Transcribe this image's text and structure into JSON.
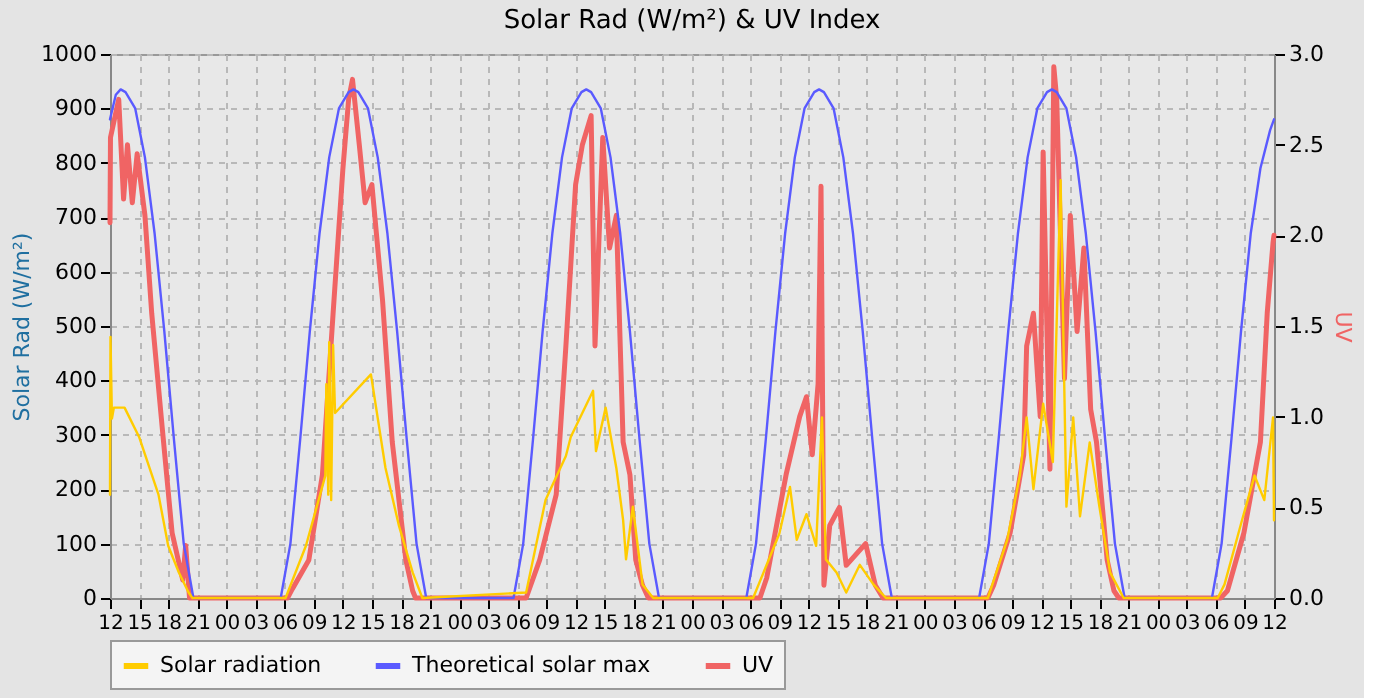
{
  "chart_data": {
    "type": "line",
    "title": "Solar Rad (W/m²) &  UV Index",
    "ylabel": "Solar Rad (W/m²)",
    "y2label": "UV",
    "xlim": [
      12,
      132
    ],
    "xticks": [
      {
        "value": 12,
        "label": "12"
      },
      {
        "value": 15,
        "label": "15"
      },
      {
        "value": 18,
        "label": "18"
      },
      {
        "value": 21,
        "label": "21"
      },
      {
        "value": 24,
        "label": "00"
      },
      {
        "value": 27,
        "label": "03"
      },
      {
        "value": 30,
        "label": "06"
      },
      {
        "value": 33,
        "label": "09"
      },
      {
        "value": 36,
        "label": "12"
      },
      {
        "value": 39,
        "label": "15"
      },
      {
        "value": 42,
        "label": "18"
      },
      {
        "value": 45,
        "label": "21"
      },
      {
        "value": 48,
        "label": "00"
      },
      {
        "value": 51,
        "label": "03"
      },
      {
        "value": 54,
        "label": "06"
      },
      {
        "value": 57,
        "label": "09"
      },
      {
        "value": 60,
        "label": "12"
      },
      {
        "value": 63,
        "label": "15"
      },
      {
        "value": 66,
        "label": "18"
      },
      {
        "value": 69,
        "label": "21"
      },
      {
        "value": 72,
        "label": "00"
      },
      {
        "value": 75,
        "label": "03"
      },
      {
        "value": 78,
        "label": "06"
      },
      {
        "value": 81,
        "label": "09"
      },
      {
        "value": 84,
        "label": "12"
      },
      {
        "value": 87,
        "label": "15"
      },
      {
        "value": 90,
        "label": "18"
      },
      {
        "value": 93,
        "label": "21"
      },
      {
        "value": 96,
        "label": "00"
      },
      {
        "value": 99,
        "label": "03"
      },
      {
        "value": 102,
        "label": "06"
      },
      {
        "value": 105,
        "label": "09"
      },
      {
        "value": 108,
        "label": "12"
      },
      {
        "value": 111,
        "label": "15"
      },
      {
        "value": 114,
        "label": "18"
      },
      {
        "value": 117,
        "label": "21"
      },
      {
        "value": 120,
        "label": "00"
      },
      {
        "value": 123,
        "label": "03"
      },
      {
        "value": 126,
        "label": "06"
      },
      {
        "value": 129,
        "label": "09"
      },
      {
        "value": 132,
        "label": "12"
      }
    ],
    "ylim": [
      0,
      1000
    ],
    "yticks": [
      0,
      100,
      200,
      300,
      400,
      500,
      600,
      700,
      800,
      900,
      1000
    ],
    "y2lim": [
      0,
      3
    ],
    "y2ticks": [
      {
        "value": 0,
        "label": "0.0"
      },
      {
        "value": 0.5,
        "label": "0.5"
      },
      {
        "value": 1,
        "label": "1.0"
      },
      {
        "value": 1.5,
        "label": "1.5"
      },
      {
        "value": 2,
        "label": "2.0"
      },
      {
        "value": 2.5,
        "label": "2.5"
      },
      {
        "value": 3,
        "label": "3.0"
      }
    ],
    "grid": true,
    "legend": "bottom",
    "series": [
      {
        "name": "Solar radiation",
        "color": "#ffcc00",
        "x": [
          12,
          12.05,
          12.2,
          12.4,
          13.5,
          15.0,
          17.0,
          18.0,
          19.1,
          20.1,
          20.5,
          30.1,
          32.2,
          34.2,
          34.3,
          34.5,
          34.6,
          34.8,
          35.0,
          35.2,
          38.9,
          40.4,
          41.8,
          43.2,
          44.2,
          54.9,
          56.9,
          59.0,
          59.5,
          61.8,
          62.1,
          63.1,
          64.2,
          64.9,
          65.2,
          65.9,
          66.9,
          68.0,
          78.3,
          81.0,
          82.1,
          82.8,
          83.8,
          84.8,
          85.4,
          85.8,
          86.9,
          87.9,
          89.3,
          90.7,
          92.0,
          102.5,
          104.5,
          105.8,
          106.5,
          107.2,
          108.2,
          109.2,
          110.0,
          110.6,
          111.3,
          112.0,
          113.0,
          114.0,
          115.1,
          116.5,
          126.2,
          126.9,
          128.7,
          130.0,
          131.0,
          131.9,
          132.0
        ],
        "values": [
          190,
          480,
          330,
          350,
          350,
          296,
          190,
          96,
          47,
          10,
          0,
          0,
          96,
          225,
          393,
          190,
          470,
          180,
          465,
          340,
          411,
          239,
          132,
          47,
          0,
          10,
          180,
          261,
          296,
          381,
          270,
          350,
          239,
          143,
          71,
          168,
          25,
          0,
          0,
          118,
          204,
          107,
          154,
          96,
          332,
          71,
          47,
          10,
          61,
          25,
          0,
          0,
          107,
          225,
          332,
          200,
          357,
          250,
          768,
          168,
          332,
          150,
          286,
          168,
          47,
          0,
          0,
          25,
          143,
          225,
          180,
          332,
          143
        ]
      },
      {
        "name": "Theoretical solar max",
        "color": "#5a5aff",
        "x": [
          12,
          12.6,
          13.1,
          13.6,
          14.6,
          15.6,
          16.6,
          17.6,
          18.6,
          19.6,
          20.6,
          29.6,
          30.6,
          31.6,
          32.6,
          33.6,
          34.6,
          35.6,
          36.6,
          37.1,
          37.6,
          38.6,
          39.6,
          40.6,
          41.6,
          42.6,
          43.6,
          44.6,
          53.6,
          54.6,
          55.6,
          56.6,
          57.6,
          58.6,
          59.6,
          60.6,
          61.1,
          61.6,
          62.6,
          63.6,
          64.6,
          65.6,
          66.6,
          67.6,
          68.6,
          77.6,
          78.6,
          79.6,
          80.6,
          81.6,
          82.6,
          83.6,
          84.6,
          85.1,
          85.6,
          86.6,
          87.6,
          88.6,
          89.6,
          90.6,
          91.6,
          92.6,
          101.6,
          102.6,
          103.6,
          104.6,
          105.6,
          106.6,
          107.6,
          108.6,
          109.1,
          109.6,
          110.6,
          111.6,
          112.6,
          113.6,
          114.6,
          115.6,
          116.6,
          125.6,
          126.6,
          127.6,
          128.6,
          129.6,
          130.6,
          131.6,
          132
        ],
        "values": [
          880,
          925,
          935,
          930,
          900,
          810,
          670,
          490,
          290,
          100,
          0,
          0,
          100,
          290,
          490,
          670,
          810,
          900,
          930,
          935,
          930,
          900,
          810,
          670,
          490,
          290,
          100,
          0,
          0,
          100,
          290,
          490,
          670,
          810,
          900,
          930,
          935,
          930,
          900,
          810,
          670,
          490,
          290,
          100,
          0,
          0,
          100,
          290,
          490,
          670,
          810,
          900,
          930,
          935,
          930,
          900,
          810,
          670,
          490,
          290,
          100,
          0,
          0,
          100,
          290,
          490,
          670,
          810,
          900,
          930,
          935,
          930,
          900,
          810,
          670,
          490,
          290,
          100,
          0,
          0,
          100,
          290,
          490,
          670,
          790,
          860,
          880
        ]
      },
      {
        "name": "UV",
        "color": "#f06464",
        "axis": "y2",
        "x": [
          12,
          12.05,
          12.9,
          13.4,
          13.8,
          14.3,
          14.8,
          15.6,
          16.3,
          17.4,
          18.4,
          19.5,
          19.8,
          20.2,
          30.3,
          30.8,
          32.5,
          33.9,
          35.0,
          36.0,
          36.6,
          37.0,
          37.7,
          38.3,
          39.0,
          40.1,
          41.1,
          42.5,
          43.2,
          43.5,
          54.9,
          56.3,
          58.0,
          59.0,
          60.0,
          60.7,
          61.6,
          62.0,
          62.8,
          63.5,
          64.2,
          64.9,
          65.6,
          66.2,
          66.9,
          67.5,
          79.0,
          79.7,
          81.7,
          83.1,
          83.8,
          84.4,
          85.0,
          85.3,
          85.6,
          86.2,
          87.2,
          87.9,
          89.9,
          90.9,
          91.7,
          102.5,
          103.1,
          104.8,
          106.2,
          106.5,
          107.2,
          107.9,
          108.2,
          108.9,
          109.3,
          109.6,
          110.4,
          111.0,
          111.7,
          112.4,
          113.1,
          113.7,
          114.8,
          115.5,
          116.0,
          126.5,
          127.2,
          128.9,
          130.6,
          131.3,
          131.9,
          132
        ],
        "values": [
          2.07,
          2.54,
          2.75,
          2.2,
          2.5,
          2.18,
          2.45,
          2.11,
          1.57,
          0.93,
          0.36,
          0.1,
          0.29,
          0,
          0,
          0.05,
          0.21,
          0.68,
          1.57,
          2.36,
          2.75,
          2.86,
          2.5,
          2.18,
          2.28,
          1.64,
          0.86,
          0.21,
          0.04,
          0,
          0,
          0.21,
          0.57,
          1.39,
          2.28,
          2.5,
          2.66,
          1.39,
          2.54,
          1.93,
          2.11,
          0.86,
          0.68,
          0.21,
          0.07,
          0,
          0,
          0.11,
          0.68,
          1.0,
          1.11,
          0.79,
          1.18,
          2.27,
          0.07,
          0.4,
          0.5,
          0.18,
          0.3,
          0.07,
          0,
          0,
          0.07,
          0.36,
          0.79,
          1.39,
          1.57,
          1.0,
          2.46,
          0.71,
          2.93,
          2.75,
          1.21,
          2.11,
          1.47,
          1.93,
          1.04,
          0.86,
          0.21,
          0.04,
          0,
          0,
          0.04,
          0.36,
          0.86,
          1.57,
          1.96,
          2.0
        ]
      }
    ]
  }
}
